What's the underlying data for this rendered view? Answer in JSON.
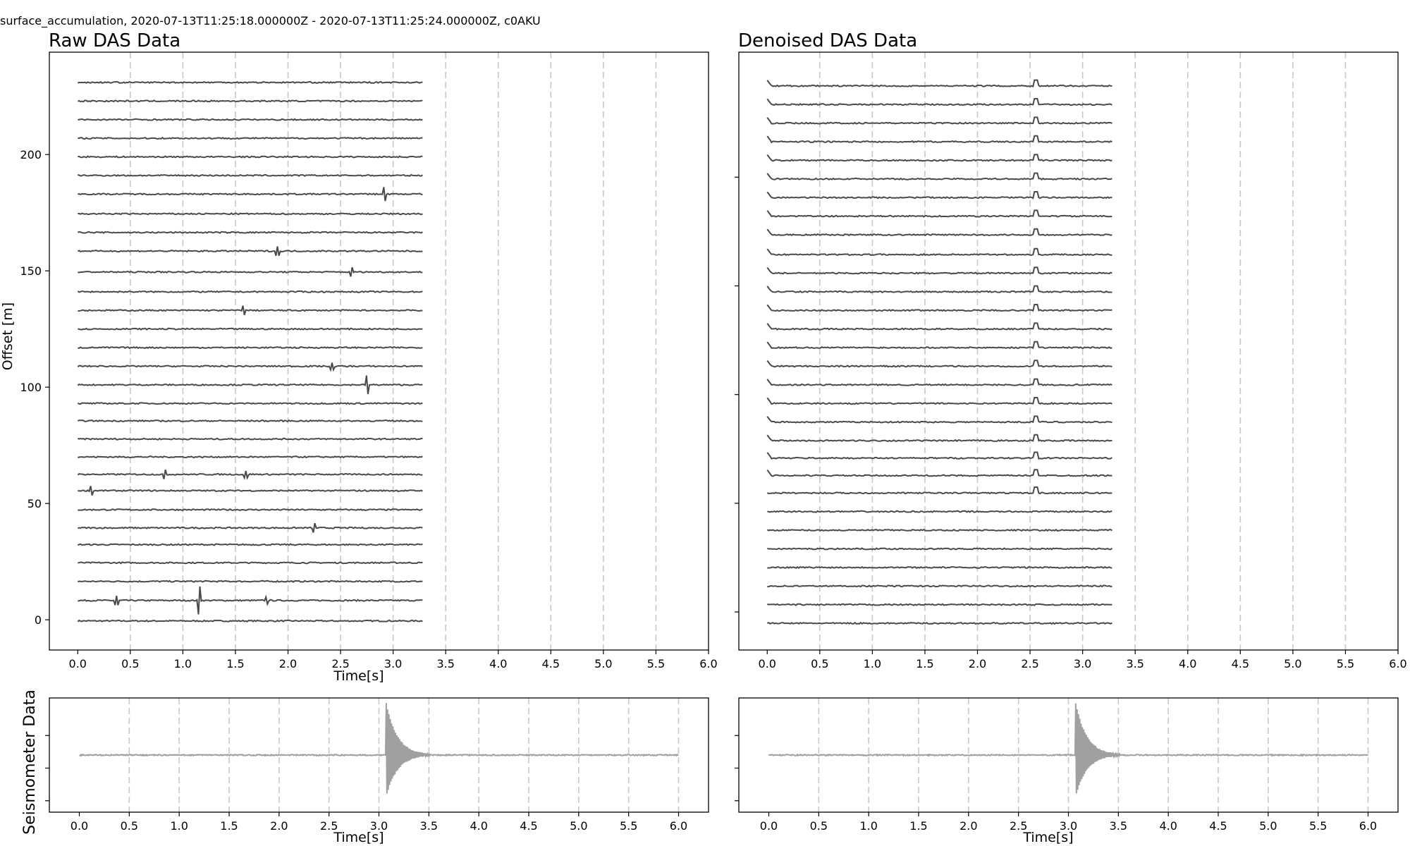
{
  "figure": {
    "suptitle": "surface_accumulation, 2020-07-13T11:25:18.000000Z - 2020-07-13T11:25:24.000000Z, c0AKU"
  },
  "chart_data": [
    {
      "id": "raw-das",
      "type": "line",
      "title": "Raw DAS Data",
      "xlabel": "Time[s]",
      "ylabel": "Offset [m]",
      "xlim": [
        -0.27,
        6.0
      ],
      "ylim": [
        -13,
        244
      ],
      "xticks": [
        "0.0",
        "0.5",
        "1.0",
        "1.5",
        "2.0",
        "2.5",
        "3.0",
        "3.5",
        "4.0",
        "4.5",
        "5.0",
        "5.5",
        "6.0"
      ],
      "yticks": [
        "0",
        "50",
        "100",
        "150",
        "200"
      ],
      "grid": "vertical dashed every 0.5 s",
      "trace_time_range": [
        0.0,
        3.28
      ],
      "trace_offsets": [
        -0.5,
        8.3,
        16.5,
        24.5,
        32.3,
        39.5,
        47.3,
        55.5,
        62.5,
        70.0,
        77.7,
        85.5,
        93.0,
        101.0,
        109.0,
        117.0,
        125.0,
        133.0,
        141.0,
        149.5,
        158.5,
        166.5,
        174.5,
        183.0,
        191.0,
        199.0,
        207.0,
        215.0,
        223.0,
        231.0
      ],
      "spikes": [
        {
          "time": 0.37,
          "offset": 8.3,
          "amplitude": 2
        },
        {
          "time": 1.15,
          "offset": 8.3,
          "amplitude": 6
        },
        {
          "time": 1.8,
          "offset": 8.3,
          "amplitude": 1.5
        },
        {
          "time": 2.25,
          "offset": 39.5,
          "amplitude": 2
        },
        {
          "time": 0.13,
          "offset": 55.5,
          "amplitude": 2
        },
        {
          "time": 0.83,
          "offset": 62.5,
          "amplitude": 2
        },
        {
          "time": 1.6,
          "offset": 62.5,
          "amplitude": 1.5
        },
        {
          "time": 2.75,
          "offset": 101.0,
          "amplitude": 4
        },
        {
          "time": 2.92,
          "offset": 183.0,
          "amplitude": 3
        },
        {
          "time": 1.9,
          "offset": 158.5,
          "amplitude": 2
        },
        {
          "time": 2.6,
          "offset": 149.5,
          "amplitude": 2
        },
        {
          "time": 1.58,
          "offset": 133.0,
          "amplitude": 2
        },
        {
          "time": 2.42,
          "offset": 109.0,
          "amplitude": 1.5
        }
      ],
      "trace_color": "#4a4a4a",
      "grid_color": "#c8c8c8"
    },
    {
      "id": "denoised-das",
      "type": "line",
      "title": "Denoised DAS Data",
      "xlabel": "",
      "ylabel": "",
      "xlim": [
        -0.27,
        6.0
      ],
      "ylim": [
        -13,
        244
      ],
      "xticks": [
        "0.0",
        "0.5",
        "1.0",
        "1.5",
        "2.0",
        "2.5",
        "3.0",
        "3.5",
        "4.0",
        "4.5",
        "5.0",
        "5.5",
        "6.0"
      ],
      "yticks": [],
      "grid": "vertical dashed every 0.5 s",
      "trace_time_range": [
        0.0,
        3.28
      ],
      "trace_offsets": [
        -1.5,
        6.5,
        14.5,
        22.5,
        30.5,
        38.5,
        46.5,
        54.5,
        62.0,
        69.5,
        77.0,
        85.0,
        93.0,
        101.0,
        109.0,
        117.0,
        125.0,
        133.0,
        141.0,
        149.0,
        157.0,
        165.5,
        173.5,
        181.5,
        189.5,
        197.5,
        205.5,
        213.5,
        221.5,
        229.5
      ],
      "spike_time": 2.56,
      "spike_amplitude": 2.5,
      "spike_from_index": 7,
      "onset_hook": true,
      "trace_color": "#4a4a4a",
      "grid_color": "#c8c8c8"
    },
    {
      "id": "seis-left",
      "type": "line",
      "title": "",
      "xlabel": "Time[s]",
      "ylabel": "Seismometer Data",
      "xlim": [
        -0.3,
        6.3
      ],
      "ylim": [
        -1.05,
        1.05
      ],
      "xticks": [
        "0.0",
        "0.5",
        "1.0",
        "1.5",
        "2.0",
        "2.5",
        "3.0",
        "3.5",
        "4.0",
        "4.5",
        "5.0",
        "5.5",
        "6.0"
      ],
      "yticks": [],
      "grid": "vertical dashed every 0.5 s",
      "trace_time_range": [
        0.0,
        6.0
      ],
      "event_time": 3.07,
      "event_amplitude": [
        0.98,
        -0.78
      ],
      "trace_color": "#a0a0a0",
      "grid_color": "#c8c8c8"
    },
    {
      "id": "seis-right",
      "type": "line",
      "title": "",
      "xlabel": "Time[s]",
      "ylabel": "",
      "xlim": [
        -0.3,
        6.3
      ],
      "ylim": [
        -1.05,
        1.05
      ],
      "xticks": [
        "0.0",
        "0.5",
        "1.0",
        "1.5",
        "2.0",
        "2.5",
        "3.0",
        "3.5",
        "4.0",
        "4.5",
        "5.0",
        "5.5",
        "6.0"
      ],
      "yticks": [],
      "grid": "vertical dashed every 0.5 s",
      "trace_time_range": [
        0.0,
        6.0
      ],
      "event_time": 3.07,
      "event_amplitude": [
        0.98,
        -0.78
      ],
      "trace_color": "#a0a0a0",
      "grid_color": "#c8c8c8"
    }
  ]
}
